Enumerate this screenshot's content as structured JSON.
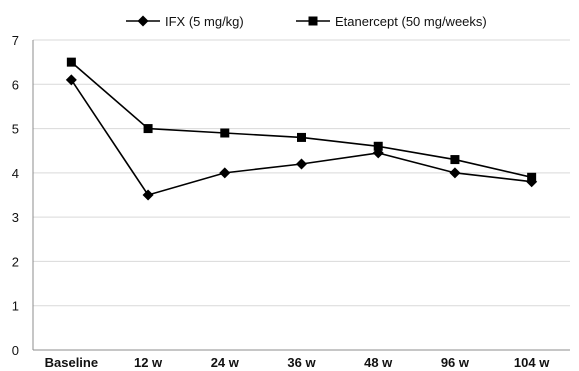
{
  "chart_data": {
    "type": "line",
    "categories": [
      "Baseline",
      "12 w",
      "24 w",
      "36 w",
      "48 w",
      "96 w",
      "104 w"
    ],
    "ylim": [
      0,
      7
    ],
    "yticks": [
      0,
      1,
      2,
      3,
      4,
      5,
      6,
      7
    ],
    "grid": true,
    "legend_position": "top",
    "series": [
      {
        "name": "IFX (5 mg/kg)",
        "marker": "diamond",
        "color": "#000000",
        "values": [
          6.1,
          3.5,
          4.0,
          4.2,
          4.45,
          4.0,
          3.8
        ]
      },
      {
        "name": "Etanercept (50 mg/weeks)",
        "marker": "square",
        "color": "#000000",
        "values": [
          6.5,
          5.0,
          4.9,
          4.8,
          4.6,
          4.3,
          3.9
        ]
      }
    ]
  }
}
